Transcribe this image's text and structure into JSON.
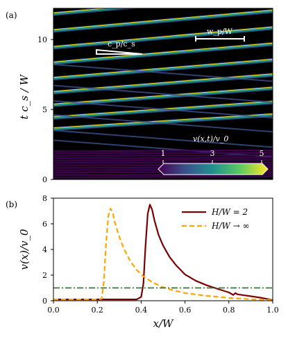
{
  "panel_a": {
    "label": "(a)",
    "ylabel": "t c_s / W",
    "yticks": [
      "0",
      "5",
      "10"
    ],
    "annotation_cp": "c_p/c_s",
    "annotation_wp": "w_p/W",
    "colorbar_label": "v(x,t)/v_0",
    "colorbar_ticks": [
      "1",
      "3",
      "5"
    ]
  },
  "panel_b": {
    "label": "(b)",
    "ylabel": "v(x)/v_0",
    "xlabel": "x/W",
    "xticks": [
      "0.0",
      "0.2",
      "0.4",
      "0.6",
      "0.8",
      "1.0"
    ],
    "yticks": [
      "0",
      "2",
      "4",
      "6",
      "8"
    ],
    "legend": [
      "H/W = 2",
      "H/W → ∞"
    ]
  },
  "colors": {
    "solid": "#7a0000",
    "dashed": "#ffa500",
    "dashdot": "#2e7d32"
  },
  "chart_data": [
    {
      "type": "heatmap",
      "ylabel": "t c_s / W",
      "ylim": [
        0,
        12.2
      ],
      "colorbar": {
        "label": "v(x,t)/v_0",
        "ticks": [
          1,
          3,
          5
        ],
        "colormap": "viridis"
      }
    },
    {
      "type": "line",
      "xlabel": "x/W",
      "ylabel": "v(x)/v_0",
      "xlim": [
        0,
        1
      ],
      "ylim": [
        0,
        8
      ],
      "legend_position": "top-right",
      "series": [
        {
          "name": "H/W = 2",
          "style": "solid",
          "x": [
            0.0,
            0.1,
            0.2,
            0.3,
            0.38,
            0.4,
            0.41,
            0.42,
            0.43,
            0.44,
            0.45,
            0.46,
            0.47,
            0.48,
            0.5,
            0.53,
            0.56,
            0.6,
            0.65,
            0.7,
            0.75,
            0.8,
            0.81,
            0.82,
            0.83,
            0.84,
            0.86,
            0.9,
            0.95,
            1.0
          ],
          "y": [
            0.1,
            0.1,
            0.1,
            0.1,
            0.1,
            0.3,
            1.3,
            4.3,
            6.8,
            7.5,
            7.1,
            6.3,
            5.7,
            5.1,
            4.3,
            3.4,
            2.75,
            2.05,
            1.55,
            1.2,
            0.92,
            0.65,
            0.55,
            0.45,
            0.6,
            0.5,
            0.45,
            0.35,
            0.22,
            0.05
          ]
        },
        {
          "name": "H/W → ∞",
          "style": "dashed",
          "x": [
            0.0,
            0.1,
            0.2,
            0.22,
            0.23,
            0.24,
            0.25,
            0.26,
            0.27,
            0.28,
            0.3,
            0.32,
            0.35,
            0.38,
            0.41,
            0.45,
            0.5,
            0.55,
            0.6,
            0.7,
            0.8,
            0.9,
            1.0
          ],
          "y": [
            0.1,
            0.1,
            0.1,
            0.15,
            1.5,
            4.5,
            6.6,
            7.2,
            6.9,
            6.1,
            5.0,
            4.1,
            3.1,
            2.4,
            1.9,
            1.45,
            1.05,
            0.8,
            0.6,
            0.38,
            0.22,
            0.12,
            0.05
          ]
        },
        {
          "name": "",
          "style": "dashdot",
          "x": [
            0.0,
            1.0
          ],
          "y": [
            1.0,
            1.0
          ]
        }
      ]
    }
  ]
}
